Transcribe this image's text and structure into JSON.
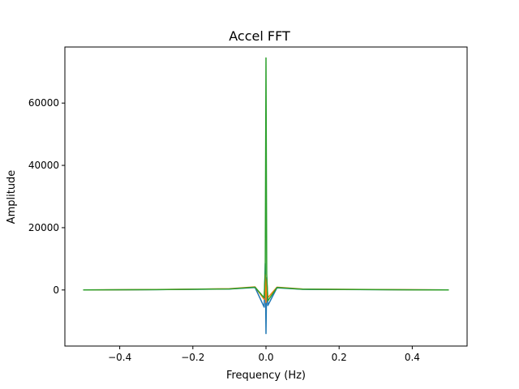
{
  "chart_data": {
    "type": "line",
    "title": "Accel FFT",
    "xlabel": "Frequency (Hz)",
    "ylabel": "Amplitude",
    "xlim": [
      -0.55,
      0.55
    ],
    "ylim": [
      -18000,
      78000
    ],
    "xticks": [
      -0.4,
      -0.2,
      0.0,
      0.2,
      0.4
    ],
    "xtick_labels": [
      "−0.4",
      "−0.2",
      "0.0",
      "0.2",
      "0.4"
    ],
    "yticks": [
      0,
      20000,
      40000,
      60000
    ],
    "ytick_labels": [
      "0",
      "20000",
      "40000",
      "60000"
    ],
    "grid": false,
    "legend": "none",
    "series": [
      {
        "color": "#1f77b4",
        "x": [
          -0.5,
          -0.3,
          -0.1,
          -0.03,
          -0.005,
          -0.002,
          0.0,
          0.002,
          0.005,
          0.03,
          0.1,
          0.3,
          0.5
        ],
        "values": [
          0,
          100,
          300,
          800,
          -5500,
          8500,
          -14000,
          4000,
          -5000,
          700,
          200,
          100,
          0
        ]
      },
      {
        "color": "#ff7f0e",
        "x": [
          -0.5,
          -0.3,
          -0.1,
          -0.03,
          -0.005,
          -0.002,
          0.0,
          0.002,
          0.005,
          0.03,
          0.1,
          0.3,
          0.5
        ],
        "values": [
          0,
          150,
          400,
          1000,
          -3000,
          5000,
          -4000,
          3500,
          -2500,
          900,
          300,
          150,
          0
        ]
      },
      {
        "color": "#2ca02c",
        "x": [
          -0.5,
          -0.3,
          -0.1,
          -0.03,
          -0.005,
          -0.002,
          0.0,
          0.002,
          0.005,
          0.03,
          0.1,
          0.3,
          0.5
        ],
        "values": [
          0,
          120,
          350,
          900,
          -2500,
          6000,
          74500,
          5000,
          -3500,
          800,
          250,
          120,
          0
        ]
      }
    ]
  }
}
